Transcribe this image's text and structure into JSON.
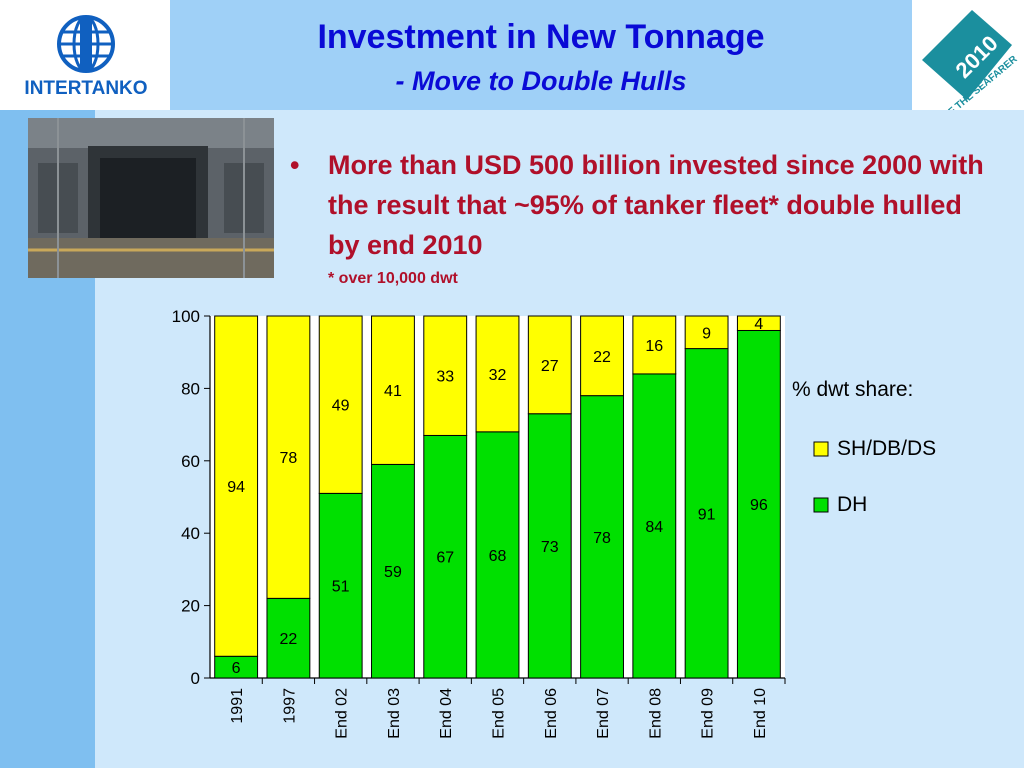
{
  "header": {
    "title": "Investment in New Tonnage",
    "subtitle": "- Move to Double Hulls",
    "logo_left_text": "INTERTANKO",
    "logo_right_year": "2010",
    "logo_right_text": "YEAR OF THE SEAFARER"
  },
  "content": {
    "bullet_symbol": "•",
    "bullet_text": "More than USD 500 billion invested since 2000 with the result that ~95% of tanker fleet* double hulled by end 2010",
    "footnote": "* over 10,000 dwt"
  },
  "colors": {
    "dh": "#00e000",
    "sh": "#ffff00",
    "title": "#0a0ad6",
    "bullet": "#b0102a"
  },
  "chart_data": {
    "type": "bar",
    "stacked": true,
    "categories": [
      "1991",
      "1997",
      "End 02",
      "End 03",
      "End 04",
      "End 05",
      "End 06",
      "End 07",
      "End 08",
      "End 09",
      "End 10"
    ],
    "series": [
      {
        "name": "DH",
        "values": [
          6,
          22,
          51,
          59,
          67,
          68,
          73,
          78,
          84,
          91,
          96
        ]
      },
      {
        "name": "SH/DB/DS",
        "values": [
          94,
          78,
          49,
          41,
          33,
          32,
          27,
          22,
          16,
          9,
          4
        ]
      }
    ],
    "legend_title": "% dwt share:",
    "ylim": [
      0,
      100
    ],
    "yticks": [
      0,
      20,
      40,
      60,
      80,
      100
    ],
    "legend_position": "right",
    "grid": false
  }
}
